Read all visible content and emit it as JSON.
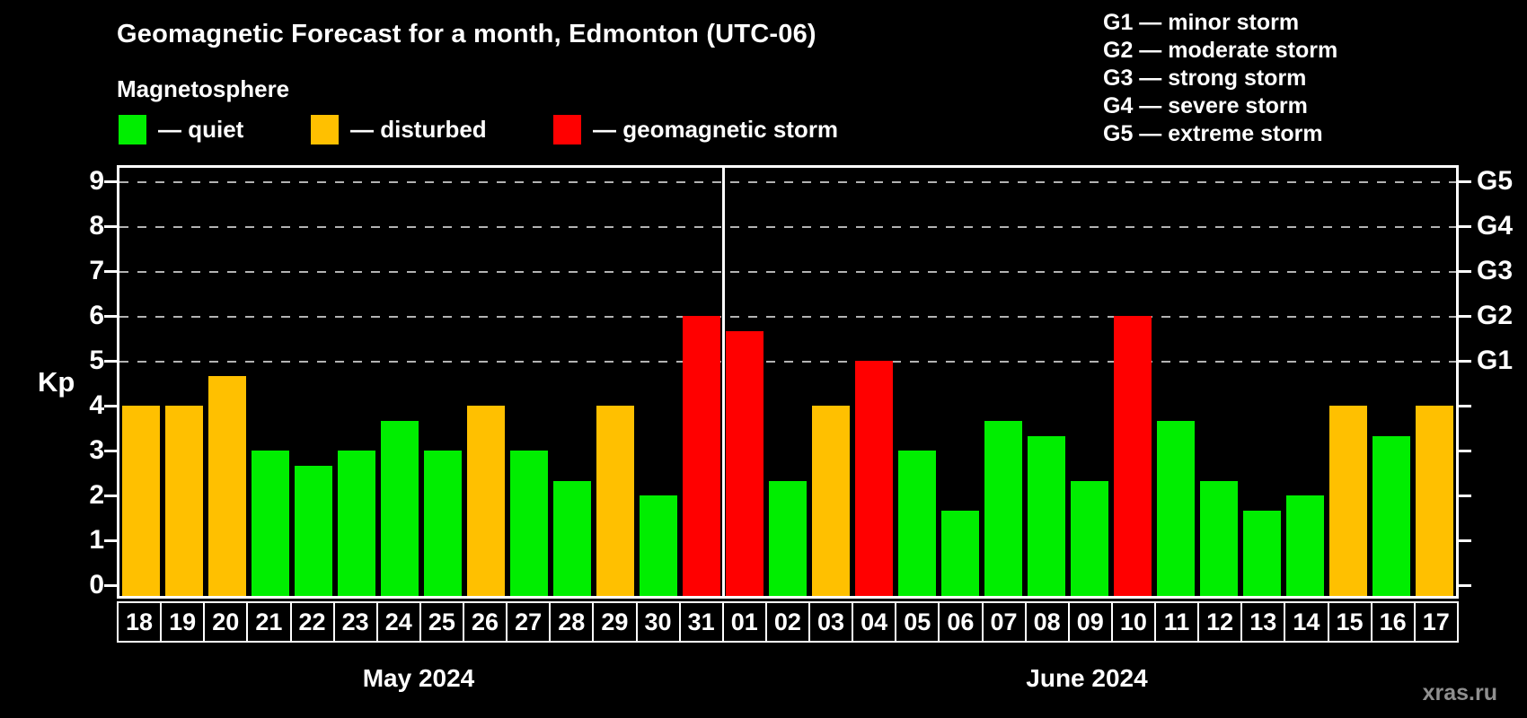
{
  "chart_data": {
    "type": "bar",
    "title": "Geomagnetic Forecast for a month, Edmonton (UTC-06)",
    "subtitle": "Magnetosphere",
    "ylabel": "Kp",
    "ylim": [
      0,
      9
    ],
    "y_ticks": [
      0,
      1,
      2,
      3,
      4,
      5,
      6,
      7,
      8,
      9
    ],
    "grid_values": [
      5,
      6,
      7,
      8,
      9
    ],
    "grid_style": "dashed-horizontal",
    "right_axis": [
      {
        "label": "G5",
        "value": 9
      },
      {
        "label": "G4",
        "value": 8
      },
      {
        "label": "G3",
        "value": 7
      },
      {
        "label": "G2",
        "value": 6
      },
      {
        "label": "G1",
        "value": 5
      }
    ],
    "categories": [
      "18",
      "19",
      "20",
      "21",
      "22",
      "23",
      "24",
      "25",
      "26",
      "27",
      "28",
      "29",
      "30",
      "31",
      "01",
      "02",
      "03",
      "04",
      "05",
      "06",
      "07",
      "08",
      "09",
      "10",
      "11",
      "12",
      "13",
      "14",
      "15",
      "16",
      "17"
    ],
    "values": [
      4,
      4,
      4.67,
      3,
      2.67,
      3,
      3.67,
      3,
      4,
      3,
      2.33,
      4,
      2,
      6,
      5.67,
      2.33,
      4,
      5,
      3,
      1.67,
      3.67,
      3.33,
      2.33,
      6,
      3.67,
      2.33,
      1.67,
      2,
      4,
      3.33,
      4
    ],
    "statuses": [
      "disturbed",
      "disturbed",
      "disturbed",
      "quiet",
      "quiet",
      "quiet",
      "quiet",
      "quiet",
      "disturbed",
      "quiet",
      "quiet",
      "disturbed",
      "quiet",
      "storm",
      "storm",
      "quiet",
      "disturbed",
      "storm",
      "quiet",
      "quiet",
      "quiet",
      "quiet",
      "quiet",
      "storm",
      "quiet",
      "quiet",
      "quiet",
      "quiet",
      "disturbed",
      "quiet",
      "disturbed"
    ],
    "months": [
      {
        "label": "May 2024",
        "span": 14
      },
      {
        "label": "June 2024",
        "span": 17
      }
    ]
  },
  "status_colors": {
    "quiet": "#00ee00",
    "disturbed": "#ffc000",
    "storm": "#ff0000"
  },
  "legend": {
    "items": [
      {
        "status": "quiet",
        "label": "— quiet"
      },
      {
        "status": "disturbed",
        "label": "— disturbed"
      },
      {
        "status": "storm",
        "label": "— geomagnetic storm"
      }
    ]
  },
  "g_legend": [
    "G1 — minor storm",
    "G2 — moderate storm",
    "G3 — strong storm",
    "G4 — severe storm",
    "G5 — extreme storm"
  ],
  "colors": {
    "background": "#000000",
    "text": "#ffffff",
    "gridline": "#b3b3b3",
    "watermark": "#8f8f8f"
  },
  "watermark": "xras.ru"
}
